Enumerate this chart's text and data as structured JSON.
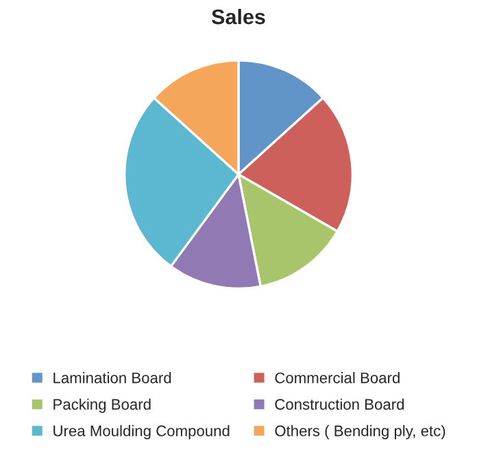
{
  "chart_data": {
    "type": "pie",
    "title": "Sales",
    "categories": [
      "Lamination Board",
      "Commercial Board",
      "Packing Board",
      "Construction Board",
      "Urea Moulding Compound",
      "Others ( Bending ply, etc)"
    ],
    "values": [
      13.3,
      20,
      13.6,
      13.2,
      26.6,
      13.3
    ],
    "colors": [
      "#6194c9",
      "#cd605b",
      "#a9c56b",
      "#9179b3",
      "#5bb8d0",
      "#f6a65a"
    ],
    "legend": "bottom"
  }
}
